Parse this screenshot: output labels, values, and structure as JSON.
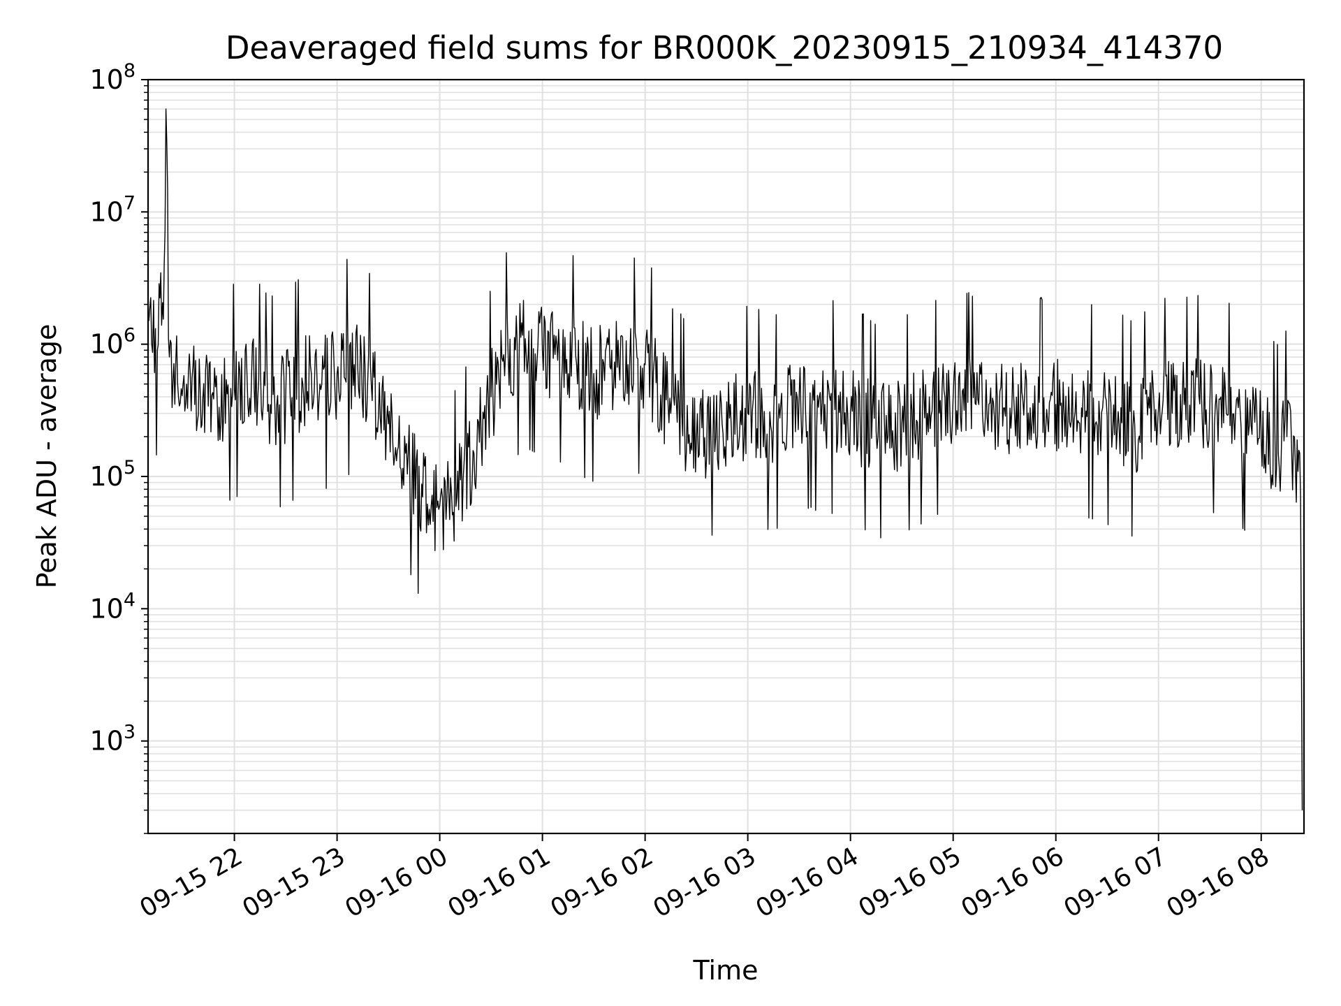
{
  "chart_data": {
    "type": "line",
    "title": "Deaveraged field sums for BR000K_20230915_210934_414370",
    "xlabel": "Time",
    "ylabel": "Peak ADU - average",
    "yscale": "log",
    "ylim": [
      200,
      100000000
    ],
    "xlim": [
      "2023-09-15 21:09:34",
      "2023-09-16 08:25:00"
    ],
    "grid": "major and minor",
    "x_ticks": [
      "09-15 22",
      "09-15 23",
      "09-16 00",
      "09-16 01",
      "09-16 02",
      "09-16 03",
      "09-16 04",
      "09-16 05",
      "09-16 06",
      "09-16 07",
      "09-16 08"
    ],
    "y_ticks": [
      {
        "base": "10",
        "exp": "3"
      },
      {
        "base": "10",
        "exp": "4"
      },
      {
        "base": "10",
        "exp": "5"
      },
      {
        "base": "10",
        "exp": "6"
      },
      {
        "base": "10",
        "exp": "7"
      },
      {
        "base": "10",
        "exp": "8"
      }
    ],
    "series_color": "#000000",
    "series": [
      {
        "x": [
          "2023-09-15 21:10",
          "2023-09-15 21:15",
          "2023-09-15 21:19",
          "2023-09-15 21:20",
          "2023-09-15 21:22",
          "2023-09-15 21:30",
          "2023-09-15 21:40",
          "2023-09-15 21:50",
          "2023-09-15 22:00",
          "2023-09-15 22:10",
          "2023-09-15 22:20",
          "2023-09-15 22:30",
          "2023-09-15 22:40",
          "2023-09-15 22:45",
          "2023-09-15 22:50",
          "2023-09-15 23:00",
          "2023-09-15 23:10",
          "2023-09-15 23:20",
          "2023-09-15 23:30",
          "2023-09-15 23:40",
          "2023-09-15 23:50",
          "2023-09-15 23:55",
          "2023-09-16 00:00",
          "2023-09-16 00:10",
          "2023-09-16 00:20",
          "2023-09-16 00:30",
          "2023-09-16 00:40",
          "2023-09-16 00:50",
          "2023-09-16 01:00",
          "2023-09-16 01:10",
          "2023-09-16 01:20",
          "2023-09-16 01:30",
          "2023-09-16 01:40",
          "2023-09-16 01:50",
          "2023-09-16 02:00",
          "2023-09-16 02:15",
          "2023-09-16 02:30",
          "2023-09-16 02:45",
          "2023-09-16 03:00",
          "2023-09-16 03:15",
          "2023-09-16 03:30",
          "2023-09-16 03:45",
          "2023-09-16 04:00",
          "2023-09-16 04:15",
          "2023-09-16 04:30",
          "2023-09-16 04:45",
          "2023-09-16 05:00",
          "2023-09-16 05:15",
          "2023-09-16 05:30",
          "2023-09-16 05:45",
          "2023-09-16 06:00",
          "2023-09-16 06:15",
          "2023-09-16 06:30",
          "2023-09-16 06:45",
          "2023-09-16 07:00",
          "2023-09-16 07:15",
          "2023-09-16 07:30",
          "2023-09-16 07:45",
          "2023-09-16 08:00",
          "2023-09-16 08:10",
          "2023-09-16 08:15",
          "2023-09-16 08:20",
          "2023-09-16 08:23",
          "2023-09-16 08:24"
        ],
        "values": [
          1500000,
          900000,
          4000000,
          60000000,
          800000,
          500000,
          450000,
          350000,
          450000,
          550000,
          350000,
          400000,
          500000,
          600000,
          500000,
          600000,
          700000,
          500000,
          250000,
          150000,
          70000,
          60000,
          60000,
          70000,
          150000,
          400000,
          800000,
          1100000,
          900000,
          850000,
          700000,
          600000,
          650000,
          700000,
          700000,
          300000,
          200000,
          250000,
          300000,
          250000,
          400000,
          350000,
          300000,
          220000,
          250000,
          300000,
          400000,
          350000,
          330000,
          330000,
          350000,
          330000,
          280000,
          230000,
          330000,
          350000,
          350000,
          300000,
          200000,
          150000,
          200000,
          120000,
          70000,
          300
        ]
      }
    ]
  }
}
